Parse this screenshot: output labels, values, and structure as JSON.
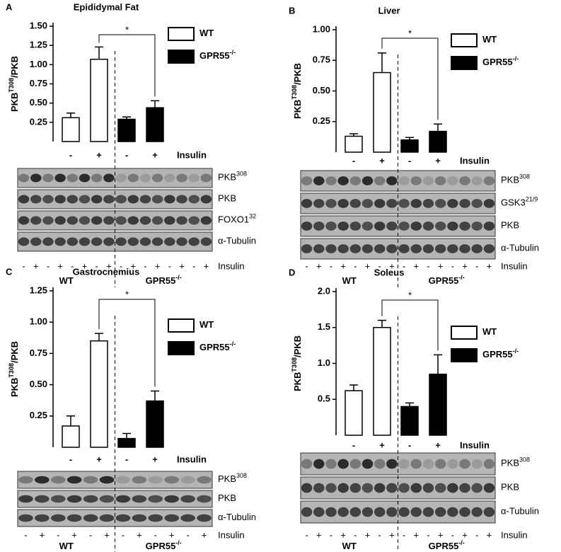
{
  "chart_data": [
    {
      "type": "bar",
      "panel": "A",
      "title": "Epididymal Fat",
      "ylabel": {
        "text": "PKB",
        "sup": "T308",
        "tail": "/PKB"
      },
      "ylim": [
        0,
        1.5
      ],
      "yticks": [
        {
          "value": 0.25,
          "label": "0.25"
        },
        {
          "value": 0.5,
          "label": "0.50"
        },
        {
          "value": 0.75,
          "label": "0.75"
        },
        {
          "value": 1,
          "label": "1.00"
        },
        {
          "value": 1.25,
          "label": "1.25"
        },
        {
          "value": 1.5,
          "label": "1.50"
        }
      ],
      "categories": [
        "-",
        "+",
        "-",
        "+"
      ],
      "condition_label": "Insulin",
      "series": [
        {
          "name": "WT",
          "color": "#ffffff",
          "values": [
            0.31,
            1.07,
            null,
            null
          ],
          "errors": [
            0.06,
            0.16,
            null,
            null
          ]
        },
        {
          "name": "GPR55",
          "name_sup": "-/-",
          "color": "#000000",
          "values": [
            null,
            null,
            0.29,
            0.44
          ],
          "errors": [
            null,
            null,
            0.03,
            0.09
          ]
        }
      ],
      "significance": "*",
      "blots": [
        {
          "text": "PKB",
          "sup": "308"
        },
        {
          "text": "PKB"
        },
        {
          "text": "FOXO1",
          "sup": "32"
        },
        {
          "text": "α-Tubulin"
        }
      ],
      "lanes": [
        "-",
        "+",
        "-",
        "+",
        "-",
        "+",
        "-",
        "+",
        "-",
        "+",
        "-",
        "+",
        "-",
        "+",
        "-",
        "+"
      ],
      "groups": [
        {
          "text": "WT"
        },
        {
          "text": "GPR55",
          "sup": "-/-"
        }
      ]
    },
    {
      "type": "bar",
      "panel": "B",
      "title": "Liver",
      "ylabel": {
        "text": "PKB",
        "sup": "T308",
        "tail": "/PKB"
      },
      "ylim": [
        0,
        1
      ],
      "yticks": [
        {
          "value": 0.25,
          "label": "0.25"
        },
        {
          "value": 0.5,
          "label": "0.50"
        },
        {
          "value": 0.75,
          "label": "0.75"
        },
        {
          "value": 1,
          "label": "1.00"
        }
      ],
      "categories": [
        "-",
        "+",
        "-",
        "+"
      ],
      "condition_label": "Insulin",
      "series": [
        {
          "name": "WT",
          "color": "#ffffff",
          "values": [
            0.13,
            0.65,
            null,
            null
          ],
          "errors": [
            0.02,
            0.16,
            null,
            null
          ]
        },
        {
          "name": "GPR55",
          "name_sup": "-/-",
          "color": "#000000",
          "values": [
            null,
            null,
            0.1,
            0.17
          ],
          "errors": [
            null,
            null,
            0.02,
            0.06
          ]
        }
      ],
      "significance": "*",
      "blots": [
        {
          "text": "PKB",
          "sup": "308"
        },
        {
          "text": "GSK3",
          "sup": "21/9"
        },
        {
          "text": "PKB"
        },
        {
          "text": "α-Tubulin"
        }
      ],
      "lanes": [
        "-",
        "+",
        "-",
        "+",
        "-",
        "+",
        "-",
        "+",
        "-",
        "+",
        "-",
        "+",
        "-",
        "+",
        "-",
        "+"
      ],
      "groups": [
        {
          "text": "WT"
        },
        {
          "text": "GPR55",
          "sup": "-/-"
        }
      ]
    },
    {
      "type": "bar",
      "panel": "C",
      "title": "Gastrocnemius",
      "ylabel": {
        "text": "PKB",
        "sup": "T308",
        "tail": "/PKB"
      },
      "ylim": [
        0,
        1.25
      ],
      "yticks": [
        {
          "value": 0.25,
          "label": "0.25"
        },
        {
          "value": 0.5,
          "label": "0.50"
        },
        {
          "value": 0.75,
          "label": "0.75"
        },
        {
          "value": 1,
          "label": "1.00"
        },
        {
          "value": 1.25,
          "label": "1.25"
        }
      ],
      "categories": [
        "-",
        "+",
        "-",
        "+"
      ],
      "condition_label": "Insulin",
      "series": [
        {
          "name": "WT",
          "color": "#ffffff",
          "values": [
            0.17,
            0.85,
            null,
            null
          ],
          "errors": [
            0.08,
            0.06,
            null,
            null
          ]
        },
        {
          "name": "GPR55",
          "name_sup": "-/-",
          "color": "#000000",
          "values": [
            null,
            null,
            0.07,
            0.37
          ],
          "errors": [
            null,
            null,
            0.04,
            0.08
          ]
        }
      ],
      "significance": "*",
      "blots": [
        {
          "text": "PKB",
          "sup": "308"
        },
        {
          "text": "PKB"
        },
        {
          "text": "α-Tubulin"
        }
      ],
      "lanes": [
        "-",
        "+",
        "-",
        "+",
        "-",
        "+",
        "-",
        "+",
        "-",
        "+",
        "-",
        "+"
      ],
      "groups": [
        {
          "text": "WT"
        },
        {
          "text": "GPR55",
          "sup": "-/-"
        }
      ]
    },
    {
      "type": "bar",
      "panel": "D",
      "title": "Soleus",
      "ylabel": {
        "text": "PKB",
        "sup": "T308",
        "tail": "/PKB"
      },
      "ylim": [
        0,
        2
      ],
      "yticks": [
        0.5,
        {
          "value": 1,
          "label": "1.0"
        },
        1.5,
        {
          "value": 2,
          "label": "2.0"
        }
      ],
      "categories": [
        "-",
        "+",
        "-",
        "+"
      ],
      "condition_label": "Insulin",
      "series": [
        {
          "name": "WT",
          "color": "#ffffff",
          "values": [
            0.62,
            1.5,
            null,
            null
          ],
          "errors": [
            0.08,
            0.1,
            null,
            null
          ]
        },
        {
          "name": "GPR55",
          "name_sup": "-/-",
          "color": "#000000",
          "values": [
            null,
            null,
            0.4,
            0.85
          ],
          "errors": [
            null,
            null,
            0.05,
            0.27
          ]
        }
      ],
      "significance": "*",
      "blots": [
        {
          "text": "PKB",
          "sup": "308"
        },
        {
          "text": "PKB"
        },
        {
          "text": "α-Tubulin"
        }
      ],
      "lanes": [
        "-",
        "+",
        "-",
        "+",
        "-",
        "+",
        "-",
        "+",
        "-",
        "+",
        "-",
        "+",
        "-",
        "+",
        "-",
        "+"
      ],
      "groups": [
        {
          "text": "WT"
        },
        {
          "text": "GPR55",
          "sup": "-/-"
        }
      ]
    }
  ]
}
